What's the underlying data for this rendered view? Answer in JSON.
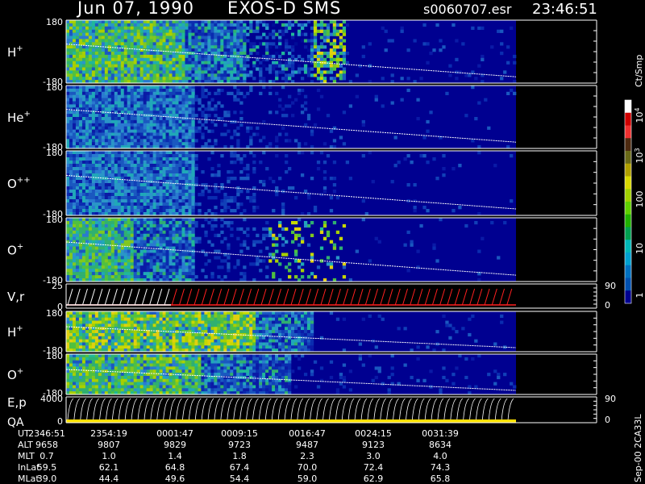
{
  "header": {
    "date": "Jun 07, 1990",
    "instrument": "EXOS-D SMS",
    "file": "s0060707.esr",
    "time": "23:46:51"
  },
  "colorbar": {
    "unit_label": "Ct/Smp",
    "scale": "log",
    "tick_labels": [
      "10^4",
      "10^3",
      "100",
      "10",
      "1"
    ],
    "colors": [
      "#ffffff",
      "#d00000",
      "#f03030",
      "#4d2a10",
      "#6a6a18",
      "#b0a000",
      "#d8d800",
      "#a0d000",
      "#60d000",
      "#20b000",
      "#00a050",
      "#00b8b8",
      "#00a0d0",
      "#0070c0",
      "#0050b0",
      "#000090"
    ]
  },
  "side_note": "Sep-00  2CA33L",
  "time_axis": {
    "rows": [
      {
        "label": "UT",
        "values": [
          "2346:51",
          "2354:19",
          "0001:47",
          "0009:15",
          "0016:47",
          "0024:15",
          "0031:39"
        ]
      },
      {
        "label": "ALT",
        "values": [
          "9658",
          "9807",
          "9829",
          "9723",
          "9487",
          "9123",
          "8634"
        ]
      },
      {
        "label": "MLT",
        "values": [
          "0.7",
          "1.0",
          "1.4",
          "1.8",
          "2.3",
          "3.0",
          "4.0"
        ]
      },
      {
        "label": "InLat",
        "values": [
          "59.5",
          "62.1",
          "64.8",
          "67.4",
          "70.0",
          "72.4",
          "74.3"
        ]
      },
      {
        "label": "MLat",
        "values": [
          "39.0",
          "44.4",
          "49.6",
          "54.4",
          "59.0",
          "62.9",
          "65.8"
        ]
      }
    ]
  },
  "chart_data": {
    "type": "heatmap",
    "title": "Jun 07, 1990   EXOS-D SMS",
    "panels": [
      {
        "key": "hplus_pitch",
        "label": "H",
        "superscript": "+",
        "y_ticks": [
          "180",
          "-180"
        ],
        "right_ticks": []
      },
      {
        "key": "heplus_pitch",
        "label": "He",
        "superscript": "+",
        "y_ticks": [
          "180",
          "-180"
        ],
        "right_ticks": []
      },
      {
        "key": "oplusplus_pitch",
        "label": "O",
        "superscript": "++",
        "y_ticks": [
          "180",
          "-180"
        ],
        "right_ticks": []
      },
      {
        "key": "oplus_pitch",
        "label": "O",
        "superscript": "+",
        "y_ticks": [
          "180",
          "-180"
        ],
        "right_ticks": []
      },
      {
        "key": "vr",
        "label": "V,r",
        "superscript": "",
        "y_ticks": [
          "25",
          "0"
        ],
        "right_ticks": [
          "90",
          "0"
        ]
      },
      {
        "key": "hplus_2",
        "label": "H",
        "superscript": "+",
        "y_ticks": [
          "180",
          "-180"
        ],
        "right_ticks": []
      },
      {
        "key": "oplus_2",
        "label": "O",
        "superscript": "+",
        "y_ticks": [
          "180",
          "-180"
        ],
        "right_ticks": []
      },
      {
        "key": "ep_qa",
        "label": "E,p",
        "superscript": "",
        "y_ticks": [
          "4000",
          "0"
        ],
        "right_ticks": [
          "90",
          "0"
        ],
        "sublabel": "QA"
      }
    ],
    "colorbar_range": [
      1,
      10000
    ]
  }
}
